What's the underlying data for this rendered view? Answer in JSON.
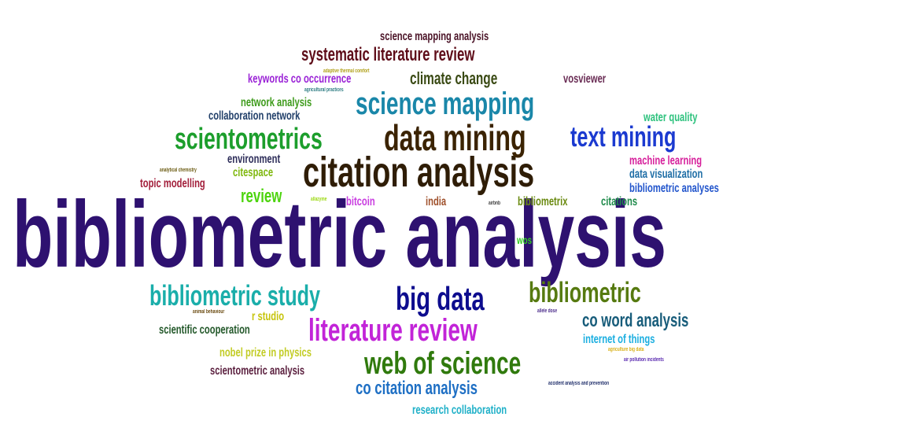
{
  "word_cloud": {
    "words": [
      {
        "text": "bibliometric analysis",
        "color": "#2E1170"
      },
      {
        "text": "citation analysis",
        "color": "#2F1D06"
      },
      {
        "text": "data mining",
        "color": "#3B2302"
      },
      {
        "text": "science mapping",
        "color": "#1A87A9"
      },
      {
        "text": "scientometrics",
        "color": "#1C9E2C"
      },
      {
        "text": "text mining",
        "color": "#1B3AD0"
      },
      {
        "text": "web of science",
        "color": "#307A0D"
      },
      {
        "text": "literature review",
        "color": "#C224D8"
      },
      {
        "text": "big data",
        "color": "#0D0C8E"
      },
      {
        "text": "bibliometric study",
        "color": "#1AAEAA"
      },
      {
        "text": "bibliometric",
        "color": "#567A10"
      },
      {
        "text": "systematic literature review",
        "color": "#5E0C18"
      },
      {
        "text": "co citation analysis",
        "color": "#1E6FC4"
      },
      {
        "text": "co word analysis",
        "color": "#175C7A"
      },
      {
        "text": "climate change",
        "color": "#3A4A14"
      },
      {
        "text": "review",
        "color": "#4DD40E"
      },
      {
        "text": "keywords co occurrence",
        "color": "#9A22D6"
      },
      {
        "text": "science mapping analysis",
        "color": "#4A1226"
      },
      {
        "text": "network analysis",
        "color": "#3E9B1B"
      },
      {
        "text": "collaboration network",
        "color": "#22406A"
      },
      {
        "text": "vosviewer",
        "color": "#6A2D55"
      },
      {
        "text": "water quality",
        "color": "#2EC27E"
      },
      {
        "text": "machine learning",
        "color": "#D61F9B"
      },
      {
        "text": "data visualization",
        "color": "#1F6EA6"
      },
      {
        "text": "bibliometric analyses",
        "color": "#2255CC"
      },
      {
        "text": "environment",
        "color": "#2E2E5A"
      },
      {
        "text": "citespace",
        "color": "#7FB80E"
      },
      {
        "text": "topic modelling",
        "color": "#A21E3A"
      },
      {
        "text": "bitcoin",
        "color": "#C93DE0"
      },
      {
        "text": "india",
        "color": "#A0522D"
      },
      {
        "text": "bibliometrix",
        "color": "#6A8A10"
      },
      {
        "text": "citations",
        "color": "#1E8A4A"
      },
      {
        "text": "wos",
        "color": "#30CC20"
      },
      {
        "text": "r studio",
        "color": "#C6C40C"
      },
      {
        "text": "scientific cooperation",
        "color": "#23582A"
      },
      {
        "text": "nobel prize in physics",
        "color": "#C2CC24"
      },
      {
        "text": "scientometric analysis",
        "color": "#5A1F3E"
      },
      {
        "text": "internet of things",
        "color": "#1AAEE0"
      },
      {
        "text": "research collaboration",
        "color": "#1FB0C8"
      },
      {
        "text": "adaptive thermal comfort",
        "color": "#B0A018"
      },
      {
        "text": "agricultural practices",
        "color": "#2A7A80"
      },
      {
        "text": "analytical chemistry",
        "color": "#6A5A10"
      },
      {
        "text": "allazyme",
        "color": "#9AD80E"
      },
      {
        "text": "airbnb",
        "color": "#3A3A3A"
      },
      {
        "text": "animal behaviour",
        "color": "#6A4A10"
      },
      {
        "text": "allele dose",
        "color": "#4A2A8A"
      },
      {
        "text": "agriculture big data",
        "color": "#D8B018"
      },
      {
        "text": "air pollution incidents",
        "color": "#5A2AB0"
      },
      {
        "text": "accident analysis and prevention",
        "color": "#1F2E6A"
      }
    ]
  }
}
